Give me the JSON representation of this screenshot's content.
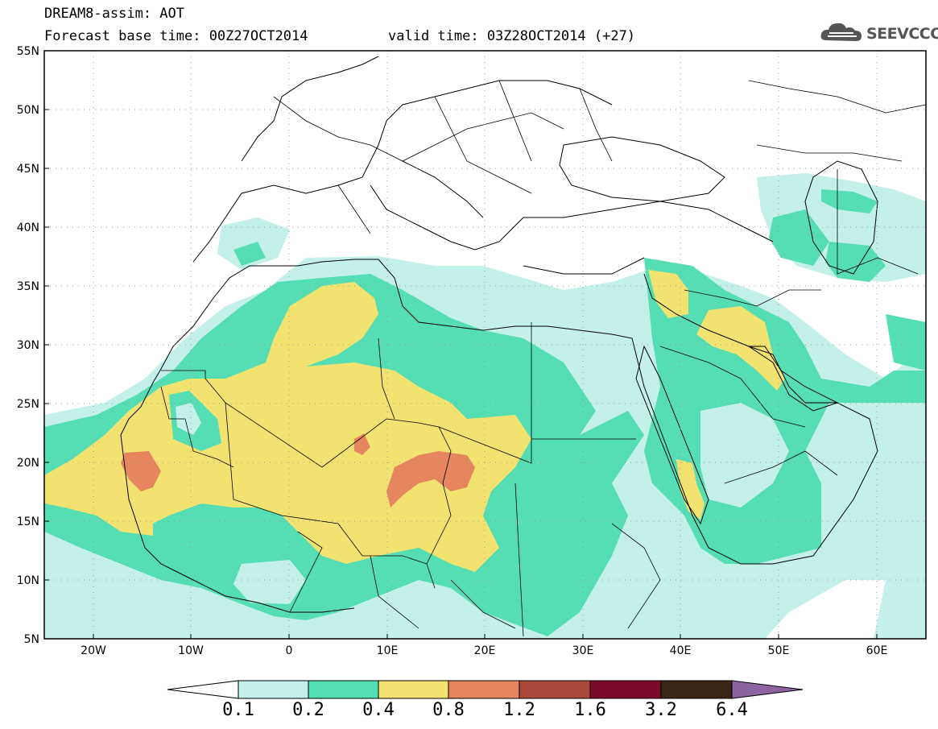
{
  "title": {
    "line1": "DREAM8-assim: AOT",
    "line2_left": "Forecast base time: 00Z27OCT2014",
    "line2_right": "valid time: 03Z28OCT2014 (+27)"
  },
  "logo": {
    "text": "SEEVCCC",
    "icon": "cloud-icon"
  },
  "map": {
    "lat_labels": [
      "55N",
      "50N",
      "45N",
      "40N",
      "35N",
      "30N",
      "25N",
      "20N",
      "15N",
      "10N",
      "5N"
    ],
    "lon_labels": [
      "20W",
      "10W",
      "0",
      "10E",
      "20E",
      "30E",
      "40E",
      "50E",
      "60E"
    ]
  },
  "colorbar": {
    "labels": [
      "0.1",
      "0.2",
      "0.4",
      "0.8",
      "1.2",
      "1.6",
      "3.2",
      "6.4"
    ],
    "colors": [
      "#c4f0ea",
      "#55ddb4",
      "#f2e270",
      "#e5865f",
      "#a84a3c",
      "#7b0b2a",
      "#3a2616",
      "#8c64a0"
    ]
  },
  "palette": {
    "lvl1": "#c4f0ea",
    "lvl2": "#55ddb4",
    "lvl3": "#f2e270",
    "lvl4": "#e5865f"
  }
}
